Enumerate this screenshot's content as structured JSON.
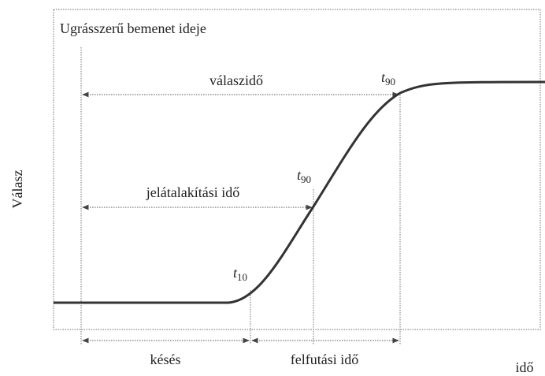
{
  "diagram": {
    "step_label": "Ugrásszerű bemenet ideje",
    "response_time_label": "válaszidő",
    "t90_top": {
      "main": "t",
      "sub": "90"
    },
    "conversion_time_label": "jelátalakítási idő",
    "t90_mid": {
      "main": "t",
      "sub": "90"
    },
    "t10": {
      "main": "t",
      "sub": "10"
    },
    "delay_label": "késés",
    "rise_time_label": "felfutási idő",
    "x_axis_label": "idő",
    "y_axis_label": "Válasz"
  }
}
